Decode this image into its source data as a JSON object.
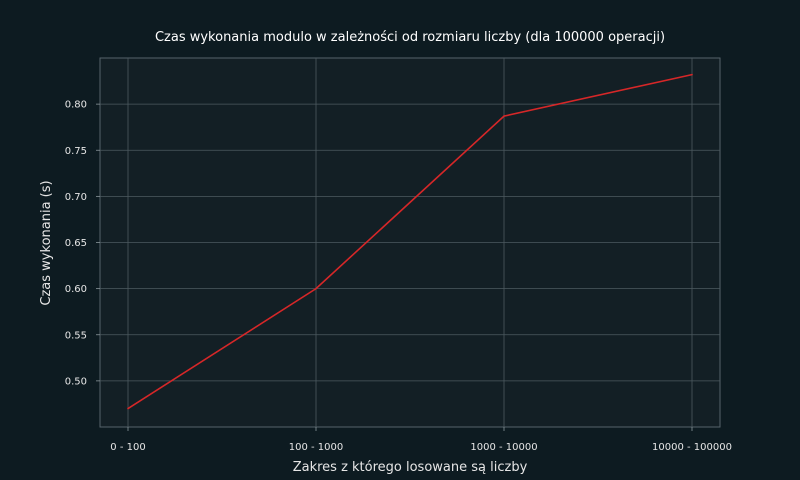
{
  "chart_data": {
    "type": "line",
    "title": "Czas wykonania modulo w zależności od rozmiaru liczby (dla 100000 operacji)",
    "xlabel": "Zakres z którego losowane są liczby",
    "ylabel": "Czas wykonania (s)",
    "categories": [
      "0 - 100",
      "100 - 1000",
      "1000 - 10000",
      "10000 - 100000"
    ],
    "series": [
      {
        "values": [
          0.47,
          0.6,
          0.787,
          0.832
        ],
        "color": "#d62728"
      }
    ],
    "yticks": [
      "0.50",
      "0.55",
      "0.60",
      "0.65",
      "0.70",
      "0.75",
      "0.80"
    ],
    "ylim": [
      0.45,
      0.85
    ],
    "grid": true,
    "colors": {
      "background": "#0d1b21",
      "plot_background": "#131f25",
      "grid": "#4d5a60",
      "text": "#e6e6e6"
    }
  }
}
